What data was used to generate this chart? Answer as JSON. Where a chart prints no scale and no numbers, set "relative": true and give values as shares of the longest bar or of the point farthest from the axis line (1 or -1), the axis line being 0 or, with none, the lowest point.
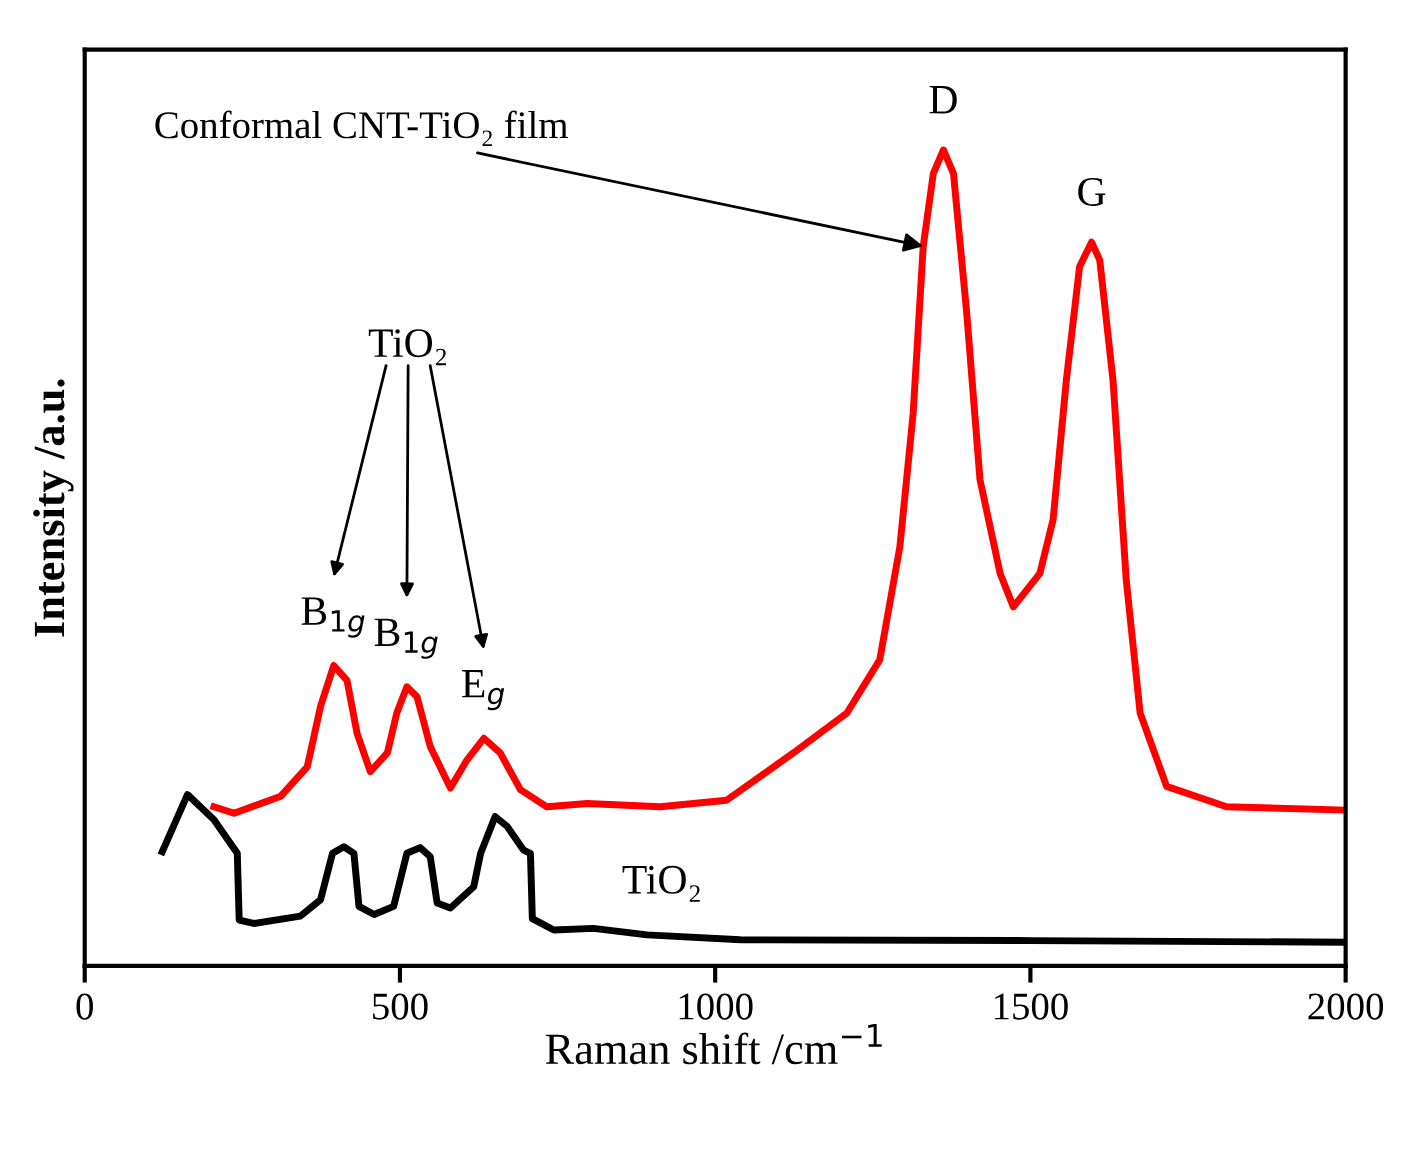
{
  "chart_data": {
    "type": "line",
    "relative": true,
    "xlabel": "Raman shift /cm$^{−1}$",
    "ylabel": "Intensity /a.u.",
    "xlim": [
      0,
      2000
    ],
    "xticks": [
      0,
      500,
      1000,
      1500,
      2000
    ],
    "grid": false,
    "legend": false,
    "tick_labels": "x",
    "marker": "none",
    "line_style": "solid",
    "series": [
      {
        "color": "#ff0000",
        "x": [
          205,
          237,
          311,
          353,
          374,
          395,
          416,
          432,
          453,
          480,
          495,
          511,
          527,
          548,
          580,
          606,
          633,
          659,
          691,
          733,
          797,
          913,
          1018,
          1124,
          1209,
          1261,
          1293,
          1314,
          1330,
          1346,
          1362,
          1378,
          1399,
          1420,
          1452,
          1473,
          1515,
          1536,
          1557,
          1578,
          1597,
          1610,
          1631,
          1652,
          1674,
          1716,
          1811,
          1996
        ],
        "values": [
          0.195,
          0.187,
          0.208,
          0.244,
          0.318,
          0.368,
          0.35,
          0.285,
          0.238,
          0.261,
          0.31,
          0.342,
          0.33,
          0.269,
          0.218,
          0.252,
          0.279,
          0.261,
          0.216,
          0.195,
          0.199,
          0.195,
          0.203,
          0.261,
          0.31,
          0.375,
          0.514,
          0.677,
          0.882,
          0.971,
          1.0,
          0.971,
          0.8,
          0.596,
          0.481,
          0.44,
          0.481,
          0.547,
          0.718,
          0.857,
          0.887,
          0.865,
          0.718,
          0.473,
          0.31,
          0.22,
          0.195,
          0.191
        ]
      },
      {
        "name": "TiO₂",
        "color": "#000000",
        "x": [
          123,
          163,
          205,
          242,
          245,
          268,
          342,
          374,
          393,
          411,
          427,
          435,
          459,
          490,
          511,
          532,
          548,
          559,
          580,
          617,
          628,
          651,
          670,
          696,
          707,
          710,
          744,
          807,
          892,
          1040,
          1500,
          2000
        ],
        "values": [
          0.14,
          0.21,
          0.179,
          0.138,
          0.056,
          0.052,
          0.061,
          0.081,
          0.138,
          0.146,
          0.138,
          0.073,
          0.063,
          0.073,
          0.138,
          0.145,
          0.134,
          0.077,
          0.071,
          0.097,
          0.138,
          0.183,
          0.171,
          0.142,
          0.138,
          0.058,
          0.044,
          0.046,
          0.038,
          0.032,
          0.031,
          0.029
        ]
      }
    ],
    "annotations": [
      {
        "text": "Conformal CNT-TiO₂ film",
        "x": 1330,
        "y": 0.882
      },
      {
        "text": "D",
        "x": 1362,
        "y": 1.0
      },
      {
        "text": "G",
        "x": 1597,
        "y": 0.887
      },
      "TiO₂",
      {
        "text": "B$_{1g}$",
        "x": 395,
        "y": 0.368
      },
      {
        "text": "B$_{1g}$",
        "x": 511,
        "y": 0.342
      },
      {
        "text": "E$_{g}$",
        "x": 633,
        "y": 0.279
      }
    ]
  }
}
